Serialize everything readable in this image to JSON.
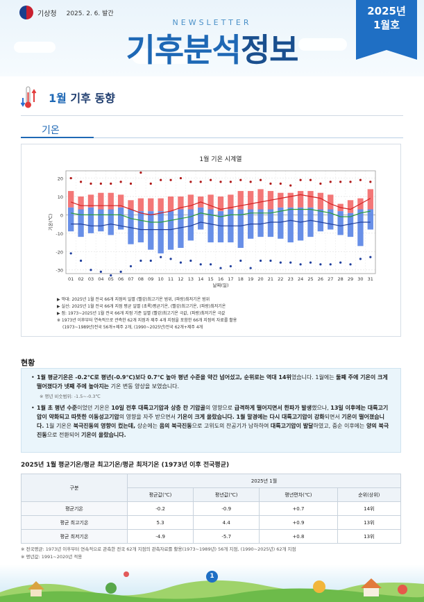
{
  "header": {
    "agency": "기상청",
    "issue_date": "2025. 2. 6. 발간",
    "newsletter": "NEWSLETTER",
    "title_part1": "기후분석",
    "title_part2": "정보",
    "badge_year": "2025년",
    "badge_month": "1월호"
  },
  "section": {
    "title_month": "1월",
    "title_rest": " 기후 동향"
  },
  "tab": {
    "label": "기온"
  },
  "chart_data": {
    "type": "bar",
    "title": "1월 기온 시계열",
    "xlabel": "날짜(일)",
    "ylabel": "기온(℃)",
    "ylim": [
      -32,
      24
    ],
    "yticks": [
      -30,
      -20,
      -10,
      0,
      10,
      20
    ],
    "grid": true,
    "categories": [
      "01",
      "02",
      "03",
      "04",
      "05",
      "06",
      "07",
      "08",
      "09",
      "10",
      "11",
      "12",
      "13",
      "14",
      "15",
      "16",
      "17",
      "18",
      "19",
      "20",
      "21",
      "22",
      "23",
      "24",
      "25",
      "26",
      "27",
      "28",
      "29",
      "30",
      "31"
    ],
    "series": [
      {
        "name": "평년 최고기온 범위",
        "color": "#f26b6b",
        "low": [
          4,
          3,
          4,
          3,
          3,
          4,
          3,
          2,
          2,
          2,
          2,
          3,
          3,
          4,
          3,
          2,
          3,
          3,
          3,
          3,
          3,
          4,
          4,
          4,
          4,
          3,
          3,
          2,
          1,
          3,
          3
        ],
        "high": [
          13,
          10,
          11,
          12,
          12,
          11,
          8,
          9,
          9,
          9,
          10,
          10,
          11,
          10,
          11,
          10,
          11,
          13,
          13,
          14,
          13,
          12,
          12,
          13,
          13,
          12,
          11,
          6,
          8,
          9,
          14
        ]
      },
      {
        "name": "평년 최저기온 범위",
        "color": "#5b86e5",
        "low": [
          -9,
          -12,
          -10,
          -9,
          -11,
          -8,
          -16,
          -15,
          -19,
          -21,
          -19,
          -18,
          -14,
          -8,
          -15,
          -15,
          -15,
          -18,
          -13,
          -12,
          -12,
          -13,
          -15,
          -14,
          -12,
          -9,
          -8,
          -11,
          -12,
          -17,
          -8
        ],
        "high": [
          4,
          3,
          4,
          3,
          3,
          4,
          3,
          2,
          2,
          2,
          2,
          3,
          3,
          4,
          3,
          2,
          3,
          3,
          3,
          3,
          3,
          4,
          4,
          4,
          4,
          3,
          3,
          2,
          1,
          3,
          3
        ]
      },
      {
        "name": "2025년 최고기온",
        "color": "#d42020",
        "values": [
          7,
          5,
          5,
          5,
          5,
          5,
          3,
          1,
          0,
          1,
          2,
          4,
          5,
          7,
          5,
          3,
          4,
          5,
          6,
          7,
          8,
          9,
          10,
          11,
          10,
          9,
          6,
          4,
          3,
          6,
          9
        ]
      },
      {
        "name": "2025년 평균기온",
        "color": "#2a9d3a",
        "values": [
          1,
          0,
          0,
          0,
          0,
          0,
          -2,
          -3,
          -4,
          -4,
          -3,
          -2,
          -1,
          1,
          0,
          -1,
          0,
          0,
          1,
          1,
          1,
          2,
          3,
          3,
          3,
          2,
          1,
          -1,
          -1,
          1,
          2
        ]
      },
      {
        "name": "2025년 최저기온",
        "color": "#1f3e9c",
        "values": [
          -5,
          -5,
          -6,
          -6,
          -5,
          -6,
          -7,
          -8,
          -8,
          -8,
          -8,
          -7,
          -6,
          -4,
          -5,
          -6,
          -6,
          -6,
          -5,
          -5,
          -4,
          -4,
          -3,
          -4,
          -3,
          -4,
          -5,
          -6,
          -5,
          -4,
          -4
        ]
      },
      {
        "name": "극값 최고",
        "color": "#b01818",
        "values": [
          20,
          18,
          17,
          17,
          17,
          18,
          17,
          23,
          17,
          19,
          19,
          20,
          18,
          18,
          19,
          18,
          18,
          19,
          18,
          19,
          17,
          17,
          16,
          19,
          19,
          17,
          18,
          18,
          18,
          19,
          18
        ]
      },
      {
        "name": "극값 최저",
        "color": "#1f3e9c",
        "values": [
          -21,
          -25,
          -30,
          -31,
          -33,
          -31,
          -28,
          -25,
          -25,
          -23,
          -24,
          -26,
          -25,
          -27,
          -27,
          -29,
          -28,
          -25,
          -29,
          -25,
          -25,
          -26,
          -26,
          -27,
          -26,
          -27,
          -27,
          -26,
          -27,
          -24,
          -23
        ]
      }
    ]
  },
  "chart_notes": [
    "▶ 막대: 2025년 1월 전국 66개 지점의 일별 (빨강)최고기온 범위, (파랑)최저기온 범위",
    "▶ 실선: 2025년 1월 전국 66개 지점 평균 일별 (초록)평균기온, (빨강)최고기온, (파랑)최저기온",
    "▶ 점: 1973~2025년 1월 전국 66개 지점 기준 일별 (빨강)최고기온 극값, (파랑)최저기온 극값",
    "※ 1973년 이후부터 연속적으로 관측한 62개 지점과 제주 4개 지점을 포함한 66개 지점의 자료를 활용",
    "(1973~1989년)전국 56개+제주 2개, (1990~2025년)전국 62개+제주 4개"
  ],
  "status": {
    "heading": "현황",
    "p1_a": "1월 평균기온은 -0.2℃로 평년(-0.9℃)보다 0.7℃ 높아 평년 수준을 약간 넘어섰고, 순위로는 역대 14위",
    "p1_b": "였습니다. 1월에는 ",
    "p1_c": "둘째 주에 기온이 크게 떨어졌다가 넷째 주에 높아지는",
    "p1_d": " 기온 변동 양상을 보였습니다.",
    "p1_note": "※ 평년 비슷범위: -1.5~-0.3℃",
    "p2_a": "1월 초 평년 수준",
    "p2_b": "이었던 기온은 ",
    "p2_c": "10일 전후 대륙고기압과 상층 찬 기압골",
    "p2_d": "의 영향으로 ",
    "p2_e": "급격하게 떨어지면서 한파가 발생",
    "p2_f": "했으나, ",
    "p2_g": "13일 이후에는 대륙고기압이 약화되고 따뜻한 이동성고기압",
    "p2_h": "의 영향을 자주 받으면서 ",
    "p2_i": "기온이 크게 올랐습니다. 1월 말경에는 다시 대륙고기압이 강화",
    "p2_j": "되면서 ",
    "p2_k": "기온이 떨어졌습니다.",
    "p2_l": " 1월 기온은 ",
    "p2_m": "북극진동의 영향이 컸는데,",
    "p2_n": " 상순에는 ",
    "p2_o": "음의 북극진동",
    "p2_p": "으로 고위도의 찬공기가 남하하여 ",
    "p2_q": "대륙고기압이 발달",
    "p2_r": "하였고, 중순 이후에는 ",
    "p2_s": "양의 북극진동",
    "p2_t": "으로 전환되어 ",
    "p2_u": "기온이 올랐습니다."
  },
  "table": {
    "title": "2025년 1월 평균기온/평균 최고기온/평균 최저기온 (1973년 이후 전국평균)",
    "group_header": "구분",
    "period_header": "2025년 1월",
    "columns": [
      "평균값(℃)",
      "평년값(℃)",
      "평년편차(℃)",
      "순위(상위)"
    ],
    "rows": [
      {
        "label": "평균기온",
        "values": [
          "-0.2",
          "-0.9",
          "+0.7",
          "14위"
        ]
      },
      {
        "label": "평균 최고기온",
        "values": [
          "5.3",
          "4.4",
          "+0.9",
          "13위"
        ]
      },
      {
        "label": "평균 최저기온",
        "values": [
          "-4.9",
          "-5.7",
          "+0.8",
          "13위"
        ]
      }
    ]
  },
  "footnotes": [
    "※ 전국평균: 1973년 이후부터 연속적으로 관측한 전국 62개 지점의 관측자료를 활용(1973~1989년) 56개 지점, (1990~2025년) 62개 지점",
    "※ 평년값: 1991~2020년 적용"
  ],
  "page": {
    "number": "1"
  },
  "colors": {
    "brand": "#1e68b5",
    "badge": "#1f6fc4",
    "status_bg": "#eaf5fb"
  }
}
